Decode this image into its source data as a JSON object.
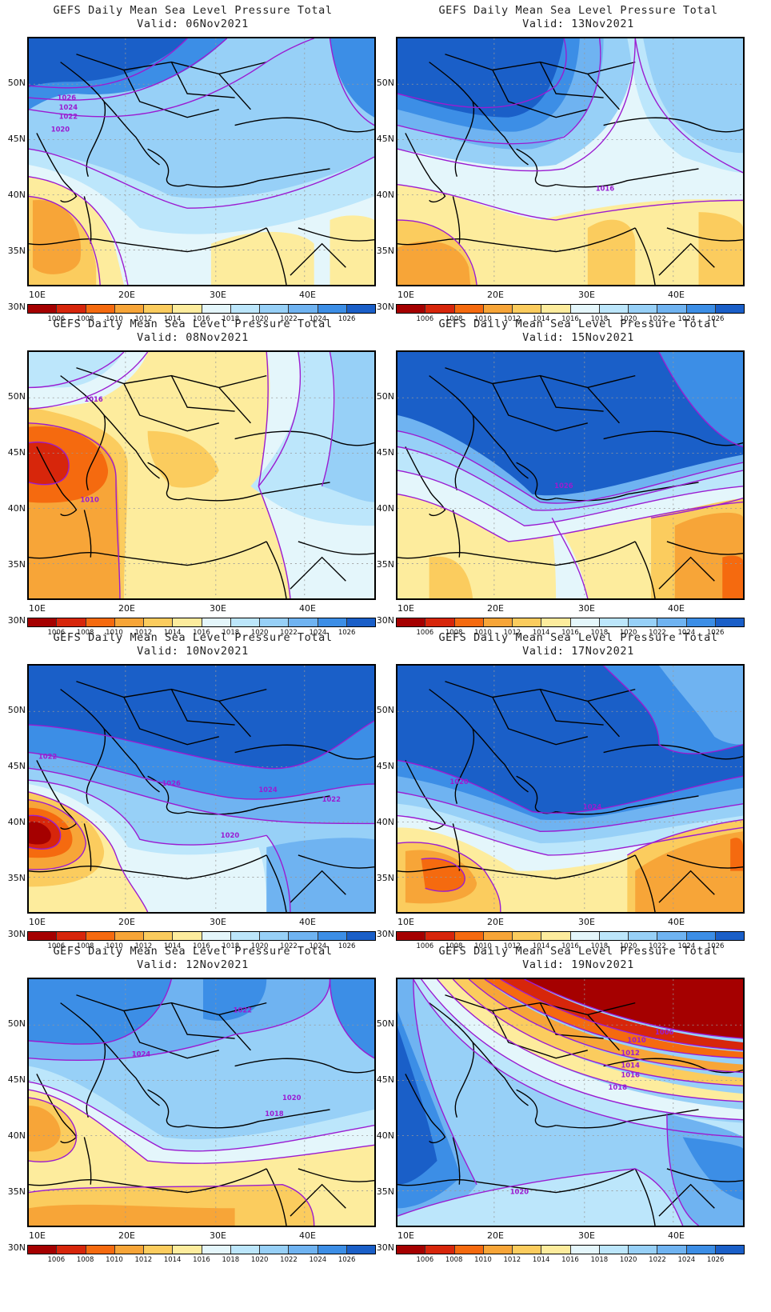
{
  "palette": [
    "#a50000",
    "#d7260b",
    "#f56a0f",
    "#f7a538",
    "#fbcc5e",
    "#fdec9d",
    "#e4f6fb",
    "#bce6fb",
    "#97d0f7",
    "#6fb3f1",
    "#3c8ee6",
    "#1a5fc8"
  ],
  "colorbar_labels": [
    "1006",
    "1008",
    "1010",
    "1012",
    "1014",
    "1016",
    "1018",
    "1020",
    "1022",
    "1024",
    "1026"
  ],
  "lat_labels": [
    "50N",
    "45N",
    "40N",
    "35N",
    "30N"
  ],
  "lon_labels": [
    "10E",
    "20E",
    "30E",
    "40E"
  ],
  "contour_color": "#9b1bd1",
  "coast_color": "#000000",
  "panels": [
    {
      "title": "GEFS Daily Mean Sea Level Pressure Total",
      "valid": "Valid: 06Nov2021",
      "labels": [
        "1026",
        "1024",
        "1022",
        "1020"
      ]
    },
    {
      "title": "GEFS Daily Mean Sea Level Pressure Total",
      "valid": "Valid: 13Nov2021",
      "labels": [
        "1016"
      ]
    },
    {
      "title": "GEFS Daily Mean Sea Level Pressure Total",
      "valid": "Valid: 08Nov2021",
      "labels": [
        "1016",
        "1010"
      ]
    },
    {
      "title": "GEFS Daily Mean Sea Level Pressure Total",
      "valid": "Valid: 15Nov2021",
      "labels": [
        "1026"
      ]
    },
    {
      "title": "GEFS Daily Mean Sea Level Pressure Total",
      "valid": "Valid: 10Nov2021",
      "labels": [
        "1022",
        "1026",
        "1024",
        "1022",
        "1020"
      ]
    },
    {
      "title": "GEFS Daily Mean Sea Level Pressure Total",
      "valid": "Valid: 17Nov2021",
      "labels": [
        "1020",
        "1024"
      ]
    },
    {
      "title": "GEFS Daily Mean Sea Level Pressure Total",
      "valid": "Valid: 12Nov2021",
      "labels": [
        "1022",
        "1024",
        "1020",
        "1018"
      ]
    },
    {
      "title": "GEFS Daily Mean Sea Level Pressure Total",
      "valid": "Valid: 19Nov2021",
      "labels": [
        "1006",
        "1010",
        "1012",
        "1014",
        "1016",
        "1018",
        "1020"
      ]
    }
  ]
}
